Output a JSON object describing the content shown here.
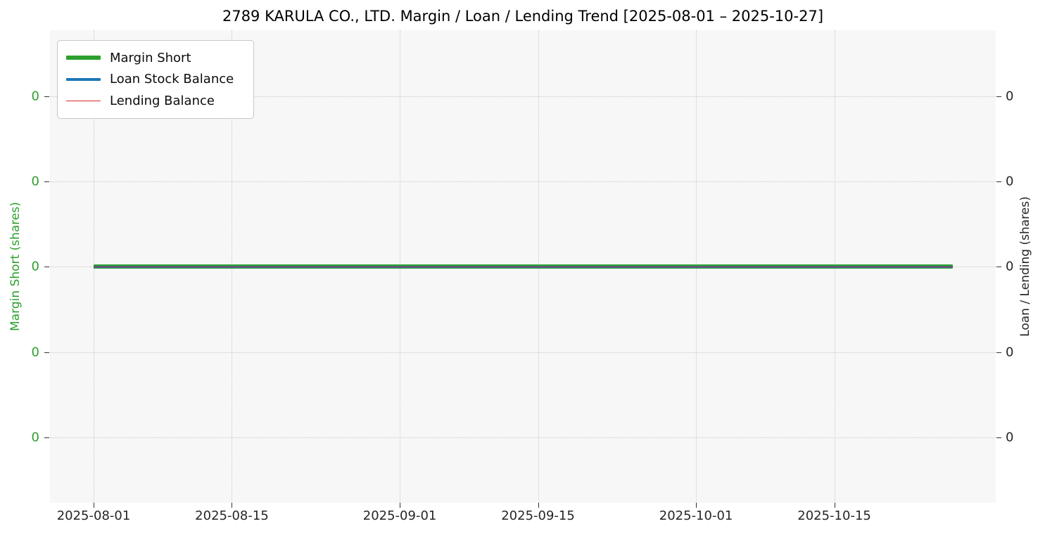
{
  "title": "2789 KARULA CO., LTD. Margin / Loan / Lending Trend [2025-08-01 – 2025-10-27]",
  "legend": {
    "items": [
      {
        "label": "Margin Short",
        "color": "#2ca02c",
        "thickness": 6
      },
      {
        "label": "Loan Stock Balance",
        "color": "#1f77b4",
        "thickness": 3.5
      },
      {
        "label": "Lending Balance",
        "color": "#d62728",
        "thickness": 1.5
      }
    ]
  },
  "axes": {
    "left": {
      "label": "Margin Short (shares)",
      "color": "#2ca02c",
      "tick_labels": [
        "0",
        "0",
        "0",
        "0",
        "0"
      ]
    },
    "right": {
      "label": "Loan / Lending (shares)",
      "color": "#262626",
      "tick_labels": [
        "0",
        "0",
        "0",
        "0",
        "0"
      ]
    },
    "x": {
      "tick_labels": [
        "2025-08-01",
        "2025-08-15",
        "2025-09-01",
        "2025-09-15",
        "2025-10-01",
        "2025-10-15"
      ]
    }
  },
  "chart_data": {
    "type": "line",
    "title": "2789 KARULA CO., LTD. Margin / Loan / Lending Trend [2025-08-01 – 2025-10-27]",
    "x_start": "2025-08-01",
    "x_end": "2025-10-27",
    "x_tick_dates": [
      "2025-08-01",
      "2025-08-15",
      "2025-09-01",
      "2025-09-15",
      "2025-10-01",
      "2025-10-15"
    ],
    "series": [
      {
        "name": "Margin Short",
        "color": "#2ca02c",
        "line_width": 6,
        "constant_value": 0,
        "axis": "left"
      },
      {
        "name": "Loan Stock Balance",
        "color": "#1f77b4",
        "line_width": 3.5,
        "constant_value": 0,
        "axis": "right"
      },
      {
        "name": "Lending Balance",
        "color": "#d62728",
        "line_width": 1.5,
        "constant_value": 0,
        "axis": "right"
      }
    ],
    "ylabel_left": "Margin Short (shares)",
    "ylabel_right": "Loan / Lending (shares)",
    "y_tick_labels_left": [
      "0",
      "0",
      "0",
      "0",
      "0"
    ],
    "y_tick_labels_right": [
      "0",
      "0",
      "0",
      "0",
      "0"
    ],
    "grid": true,
    "legend_position": "upper left",
    "note": "All three series are flat at 0 for the entire period"
  }
}
